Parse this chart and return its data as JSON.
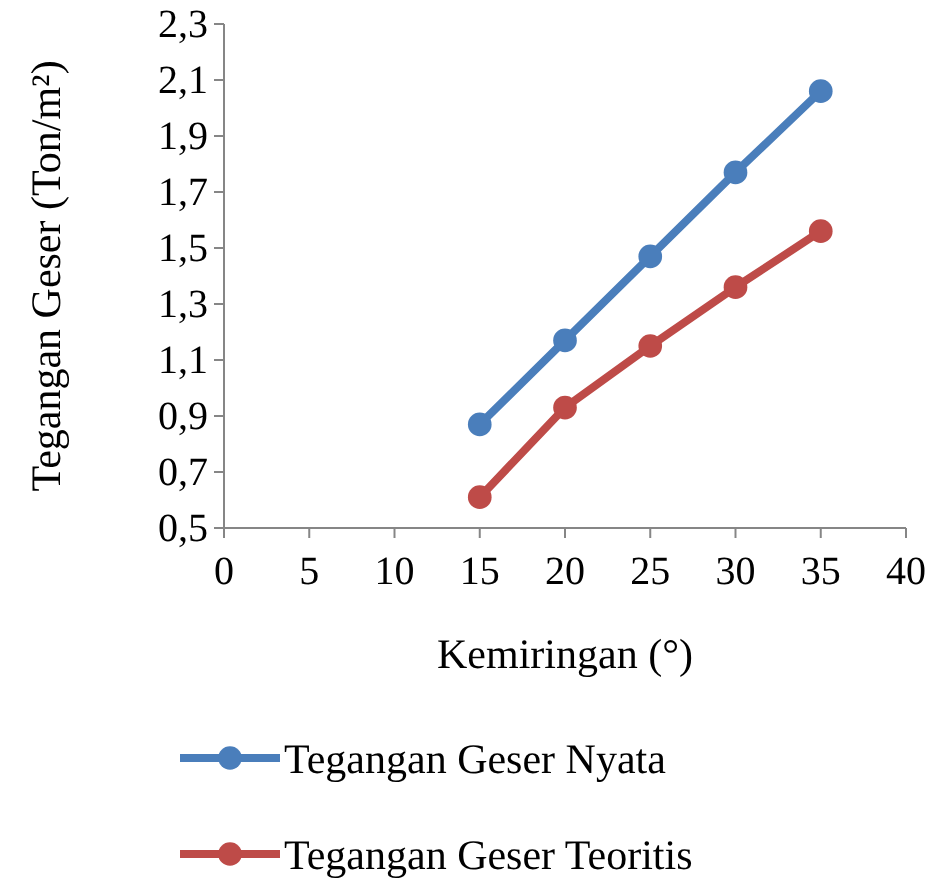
{
  "chart_data": {
    "type": "line",
    "xlabel": "Kemiringan  (°)",
    "ylabel": "Tegangan  Geser (Ton/m²)",
    "xlim": [
      0,
      40
    ],
    "xticks": [
      0,
      5,
      10,
      15,
      20,
      25,
      30,
      35,
      40
    ],
    "ylim": [
      0.5,
      2.3
    ],
    "yticks": [
      {
        "value": 0.5,
        "label": "0,5"
      },
      {
        "value": 0.7,
        "label": "0,7"
      },
      {
        "value": 0.9,
        "label": "0,9"
      },
      {
        "value": 1.1,
        "label": "1,1"
      },
      {
        "value": 1.3,
        "label": "1,3"
      },
      {
        "value": 1.5,
        "label": "1,5"
      },
      {
        "value": 1.7,
        "label": "1,7"
      },
      {
        "value": 1.9,
        "label": "1,9"
      },
      {
        "value": 2.1,
        "label": "2,1"
      },
      {
        "value": 2.3,
        "label": "2,3"
      }
    ],
    "x": [
      15,
      20,
      25,
      30,
      35
    ],
    "series": [
      {
        "name": "Tegangan Geser Nyata",
        "color": "#4a7ebb",
        "values": [
          0.87,
          1.17,
          1.47,
          1.77,
          2.06
        ]
      },
      {
        "name": "Tegangan Geser Teoritis",
        "color": "#be4b48",
        "values": [
          0.61,
          0.93,
          1.15,
          1.36,
          1.56
        ]
      }
    ],
    "marker": "circle",
    "line_style": "solid",
    "grid": false,
    "legend": "bottom"
  }
}
